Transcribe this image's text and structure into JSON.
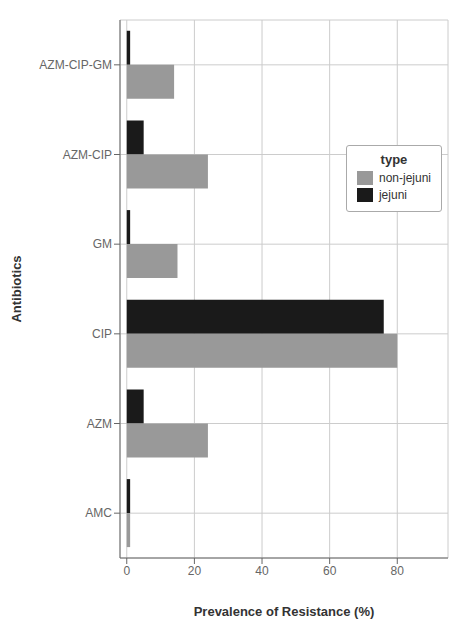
{
  "chart_data": {
    "type": "bar",
    "orientation": "horizontal",
    "x_label": "Prevalence of Resistance (%)",
    "y_label": "Antibiotics",
    "categories": [
      "AMC",
      "AZM",
      "CIP",
      "GM",
      "AZM-CIP",
      "AZM-CIP-GM"
    ],
    "series": [
      {
        "name": "non-jejuni",
        "color": "#999999",
        "values": [
          1,
          24,
          80,
          15,
          24,
          14
        ]
      },
      {
        "name": "jejuni",
        "color": "#1a1a1a",
        "values": [
          1,
          5,
          76,
          1,
          5,
          1
        ]
      }
    ],
    "xlim": [
      -2,
      95
    ],
    "xticks": [
      0,
      20,
      40,
      60,
      80
    ],
    "grid": true,
    "legend": "upper right",
    "legend_title": "type"
  }
}
